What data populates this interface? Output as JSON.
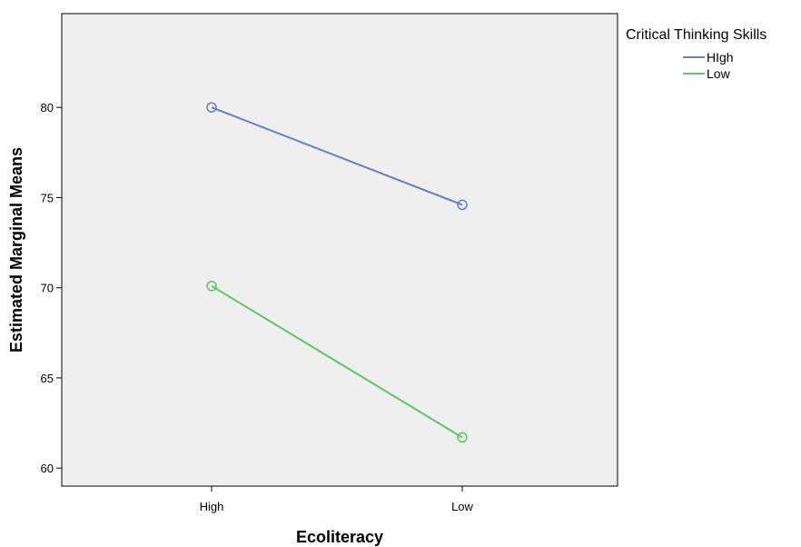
{
  "chart_data": {
    "type": "line",
    "title": "",
    "xlabel": "Ecoliteracy",
    "ylabel": "Estimated Marginal Means",
    "categories": [
      "High",
      "Low"
    ],
    "ylim": [
      59,
      85.2
    ],
    "yticks": [
      60,
      65,
      70,
      75,
      80
    ],
    "grid": false,
    "legend": {
      "title": "Critical Thinking Skills",
      "placement": "top-right-outside"
    },
    "series": [
      {
        "name": "HIgh",
        "values": [
          80.0,
          74.6
        ],
        "color": "#6a7ec4"
      },
      {
        "name": "Low",
        "values": [
          70.1,
          61.7
        ],
        "color": "#5ec465"
      }
    ]
  }
}
